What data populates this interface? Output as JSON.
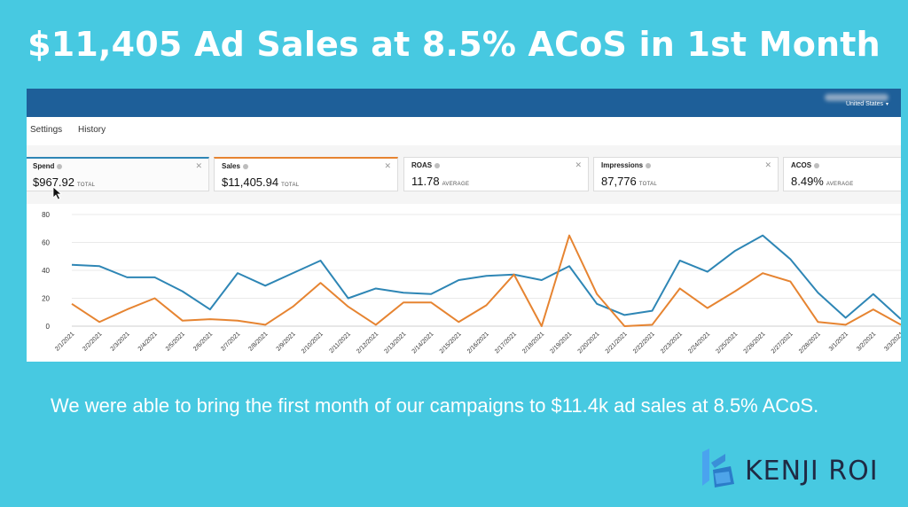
{
  "headline": "$11,405 Ad Sales at 8.5% ACoS in 1st Month",
  "topbar": {
    "region": "United States"
  },
  "subnav": {
    "settings": "Settings",
    "history": "History"
  },
  "metrics": [
    {
      "label": "Spend",
      "value": "$967.92",
      "unit": "TOTAL"
    },
    {
      "label": "Sales",
      "value": "$11,405.94",
      "unit": "TOTAL"
    },
    {
      "label": "ROAS",
      "value": "11.78",
      "unit": "AVERAGE"
    },
    {
      "label": "Impressions",
      "value": "87,776",
      "unit": "TOTAL"
    },
    {
      "label": "ACOS",
      "value": "8.49%",
      "unit": "AVERAGE"
    }
  ],
  "chart_data": {
    "type": "line",
    "ylim": [
      0,
      80
    ],
    "yticks": [
      0,
      20,
      40,
      60,
      80
    ],
    "grid": true,
    "categories": [
      "2/1/2021",
      "2/2/2021",
      "2/3/2021",
      "2/4/2021",
      "2/5/2021",
      "2/6/2021",
      "2/7/2021",
      "2/8/2021",
      "2/9/2021",
      "2/10/2021",
      "2/11/2021",
      "2/12/2021",
      "2/13/2021",
      "2/14/2021",
      "2/15/2021",
      "2/16/2021",
      "2/17/2021",
      "2/18/2021",
      "2/19/2021",
      "2/20/2021",
      "2/21/2021",
      "2/22/2021",
      "2/23/2021",
      "2/24/2021",
      "2/25/2021",
      "2/26/2021",
      "2/27/2021",
      "2/28/2021",
      "3/1/2021",
      "3/2/2021",
      "3/3/2021"
    ],
    "series": [
      {
        "color": "#2e86b5",
        "values": [
          44,
          43,
          35,
          35,
          25,
          12,
          38,
          29,
          38,
          47,
          20,
          27,
          24,
          23,
          33,
          36,
          37,
          33,
          43,
          16,
          8,
          11,
          47,
          39,
          54,
          65,
          48,
          24,
          6,
          23,
          5
        ]
      },
      {
        "color": "#e68431",
        "values": [
          16,
          3,
          12,
          20,
          4,
          5,
          4,
          1,
          14,
          31,
          14,
          1,
          17,
          17,
          3,
          15,
          37,
          0,
          65,
          23,
          0,
          1,
          27,
          13,
          25,
          38,
          32,
          3,
          1,
          12,
          1
        ]
      }
    ]
  },
  "caption": "We were able to bring the first month of our campaigns to $11.4k ad sales at 8.5% ACoS.",
  "brand": {
    "name": "KENJI ROI",
    "accent": "#3a8fd8"
  }
}
